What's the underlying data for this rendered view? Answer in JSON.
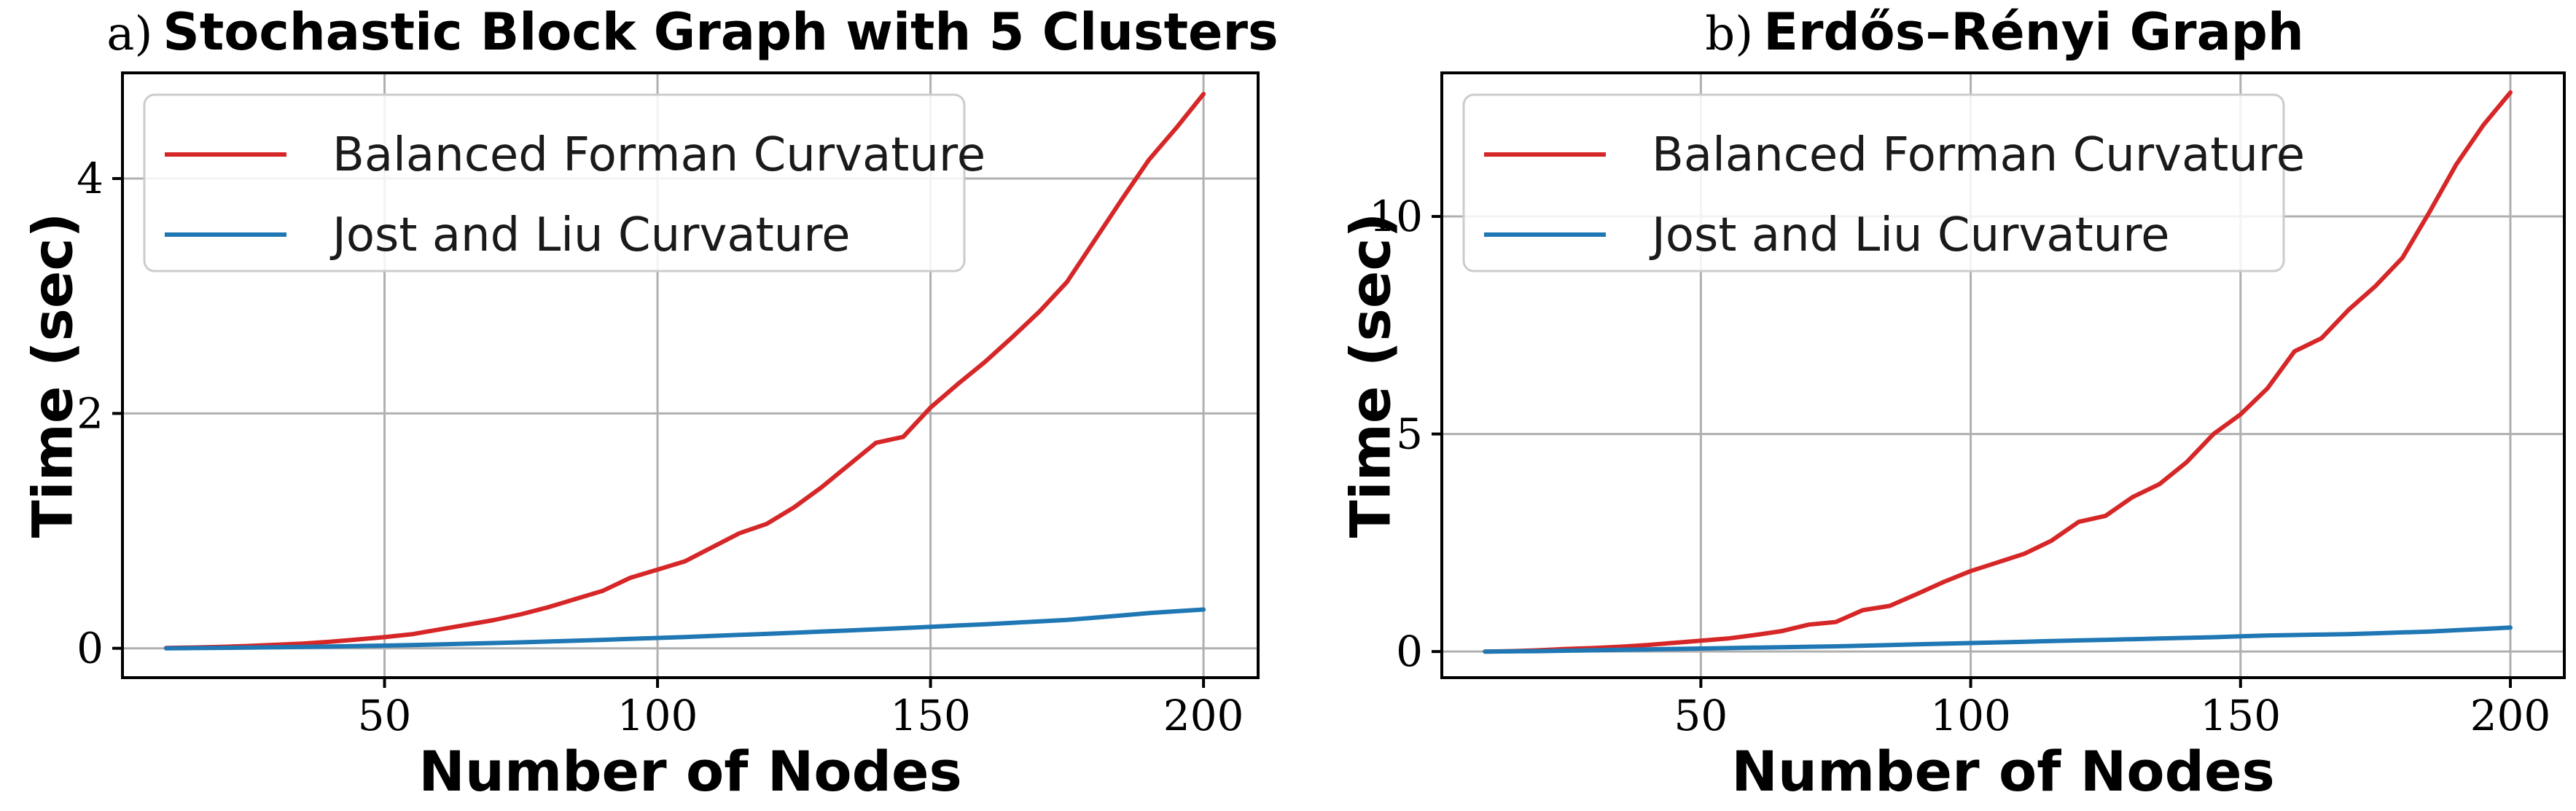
{
  "colors": {
    "balanced": "#d62728",
    "jost": "#1f77b4"
  },
  "chart_data": [
    {
      "type": "line",
      "title_prefix": "a)",
      "title": "Stochastic Block Graph with 5 Clusters",
      "xlabel": "Number of Nodes",
      "ylabel": "Time (sec)",
      "xlim": [
        2,
        210
      ],
      "ylim": [
        -0.25,
        4.9
      ],
      "xticks": [
        50,
        100,
        150,
        200
      ],
      "yticks": [
        0,
        2,
        4
      ],
      "grid": true,
      "legend_position": "top-left",
      "x": [
        10,
        15,
        20,
        25,
        30,
        35,
        40,
        45,
        50,
        55,
        60,
        65,
        70,
        75,
        80,
        85,
        90,
        95,
        100,
        105,
        110,
        115,
        120,
        125,
        130,
        135,
        140,
        145,
        150,
        155,
        160,
        165,
        170,
        175,
        180,
        185,
        190,
        195,
        200
      ],
      "series": [
        {
          "name": "Balanced Forman Curvature",
          "color_key": "balanced",
          "values": [
            0.003,
            0.007,
            0.012,
            0.02,
            0.03,
            0.04,
            0.055,
            0.075,
            0.095,
            0.12,
            0.16,
            0.2,
            0.24,
            0.29,
            0.35,
            0.42,
            0.49,
            0.6,
            0.67,
            0.74,
            0.86,
            0.98,
            1.06,
            1.2,
            1.37,
            1.56,
            1.75,
            1.8,
            2.05,
            2.25,
            2.44,
            2.65,
            2.87,
            3.12,
            3.47,
            3.82,
            4.16,
            4.43,
            4.72
          ]
        },
        {
          "name": "Jost and Liu Curvature",
          "color_key": "jost",
          "values": [
            0.0,
            0.002,
            0.004,
            0.006,
            0.009,
            0.012,
            0.015,
            0.019,
            0.023,
            0.028,
            0.033,
            0.039,
            0.045,
            0.051,
            0.058,
            0.065,
            0.072,
            0.08,
            0.088,
            0.096,
            0.105,
            0.114,
            0.123,
            0.132,
            0.142,
            0.152,
            0.162,
            0.172,
            0.183,
            0.194,
            0.205,
            0.217,
            0.229,
            0.242,
            0.26,
            0.28,
            0.3,
            0.315,
            0.33
          ]
        }
      ]
    },
    {
      "type": "line",
      "title_prefix": "b)",
      "title": "Erdős–Rényi Graph",
      "xlabel": "Number of Nodes",
      "ylabel": "Time (sec)",
      "xlim": [
        2,
        210
      ],
      "ylim": [
        -0.6,
        13.3
      ],
      "xticks": [
        50,
        100,
        150,
        200
      ],
      "yticks": [
        0,
        5,
        10
      ],
      "grid": true,
      "legend_position": "top-left",
      "x": [
        10,
        15,
        20,
        25,
        30,
        35,
        40,
        45,
        50,
        55,
        60,
        65,
        70,
        75,
        80,
        85,
        90,
        95,
        100,
        105,
        110,
        115,
        120,
        125,
        130,
        135,
        140,
        145,
        150,
        155,
        160,
        165,
        170,
        175,
        180,
        185,
        190,
        195,
        200
      ],
      "series": [
        {
          "name": "Balanced Forman Curvature",
          "color_key": "balanced",
          "values": [
            0.0,
            0.01,
            0.03,
            0.06,
            0.08,
            0.11,
            0.15,
            0.2,
            0.25,
            0.3,
            0.38,
            0.47,
            0.62,
            0.68,
            0.95,
            1.05,
            1.32,
            1.6,
            1.85,
            2.05,
            2.25,
            2.55,
            2.98,
            3.12,
            3.55,
            3.85,
            4.35,
            5.0,
            5.45,
            6.05,
            6.9,
            7.2,
            7.85,
            8.4,
            9.05,
            10.1,
            11.2,
            12.1,
            12.85
          ]
        },
        {
          "name": "Jost and Liu Curvature",
          "color_key": "jost",
          "values": [
            0.0,
            0.005,
            0.01,
            0.02,
            0.03,
            0.04,
            0.05,
            0.06,
            0.07,
            0.08,
            0.09,
            0.1,
            0.11,
            0.12,
            0.135,
            0.15,
            0.165,
            0.18,
            0.195,
            0.21,
            0.225,
            0.24,
            0.255,
            0.27,
            0.285,
            0.3,
            0.315,
            0.33,
            0.35,
            0.37,
            0.38,
            0.39,
            0.4,
            0.42,
            0.44,
            0.46,
            0.49,
            0.52,
            0.55
          ]
        }
      ]
    }
  ]
}
